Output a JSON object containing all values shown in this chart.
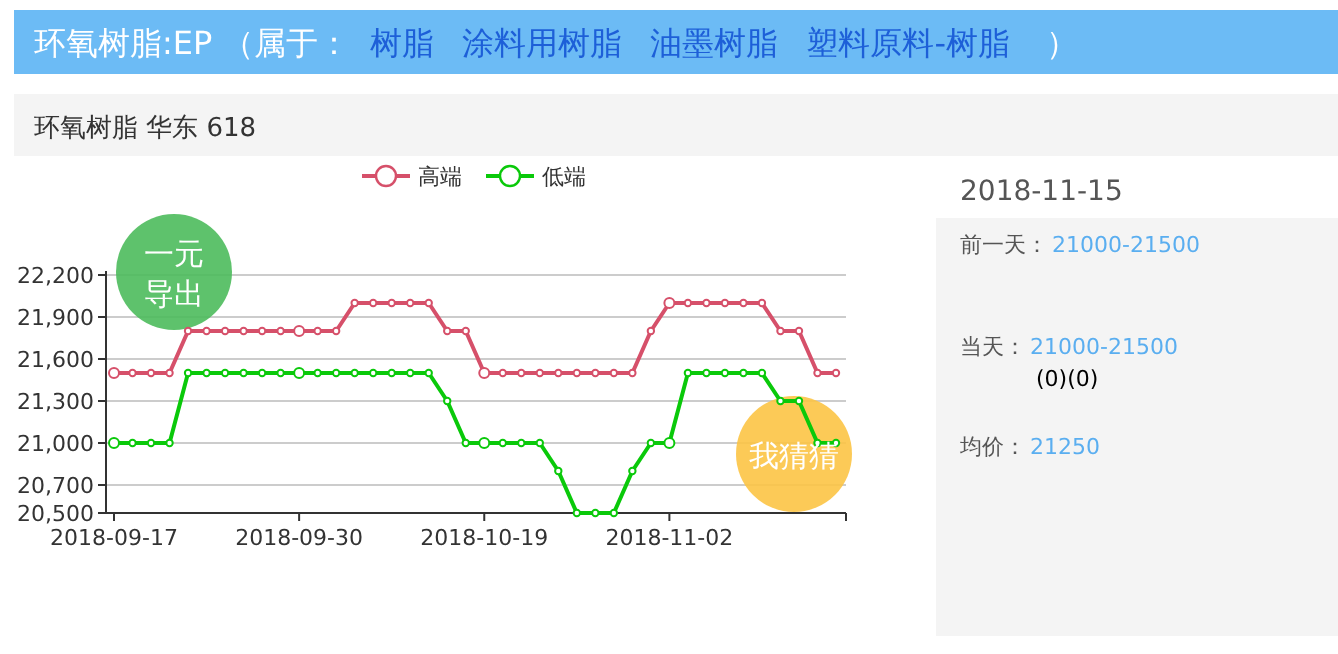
{
  "chart_data": {
    "type": "line",
    "title": "环氧树脂:EP （属于：",
    "subtitle": "环氧树脂 华东 618",
    "categories": [
      "2018-09-17",
      null,
      null,
      null,
      null,
      null,
      null,
      null,
      null,
      null,
      "2018-09-30",
      null,
      null,
      null,
      null,
      null,
      null,
      null,
      null,
      null,
      "2018-10-19",
      null,
      null,
      null,
      null,
      null,
      null,
      null,
      null,
      null,
      "2018-11-02",
      null,
      null,
      null,
      null,
      null,
      null,
      null,
      null,
      null
    ],
    "series": [
      {
        "name": "高端",
        "color": "#d6506a",
        "values": [
          21500,
          21500,
          21500,
          21500,
          21800,
          21800,
          21800,
          21800,
          21800,
          21800,
          21800,
          21800,
          21800,
          22000,
          22000,
          22000,
          22000,
          22000,
          21800,
          21800,
          21500,
          21500,
          21500,
          21500,
          21500,
          21500,
          21500,
          21500,
          21500,
          21800,
          22000,
          22000,
          22000,
          22000,
          22000,
          22000,
          21800,
          21800,
          21500,
          21500
        ]
      },
      {
        "name": "低端",
        "color": "#0ac90a",
        "values": [
          21000,
          21000,
          21000,
          21000,
          21500,
          21500,
          21500,
          21500,
          21500,
          21500,
          21500,
          21500,
          21500,
          21500,
          21500,
          21500,
          21500,
          21500,
          21300,
          21000,
          21000,
          21000,
          21000,
          21000,
          20800,
          20500,
          20500,
          20500,
          20800,
          21000,
          21000,
          21500,
          21500,
          21500,
          21500,
          21500,
          21300,
          21300,
          21000,
          21000
        ]
      }
    ],
    "ylim": [
      20500,
      22200
    ],
    "yticks": [
      {
        "value": 20500,
        "label": "20,500"
      },
      {
        "value": 20700,
        "label": "20,700"
      },
      {
        "value": 21000,
        "label": "21,000"
      },
      {
        "value": 21300,
        "label": "21,300"
      },
      {
        "value": 21600,
        "label": "21,600"
      },
      {
        "value": 21900,
        "label": "21,900"
      },
      {
        "value": 22200,
        "label": "22,200"
      }
    ],
    "grid": "y",
    "legend": "top",
    "marker": "circle",
    "line_style": "solid",
    "annotations": [
      "树脂",
      "涂料用树脂",
      "油墨树脂",
      "塑料原料-树脂",
      "）",
      "2018-11-15",
      "前一天：",
      "21000-21500",
      "当天：",
      "21000-21500",
      "(0)(0)",
      "均价：",
      "21250",
      "一元导出",
      "我猜猜"
    ]
  }
}
